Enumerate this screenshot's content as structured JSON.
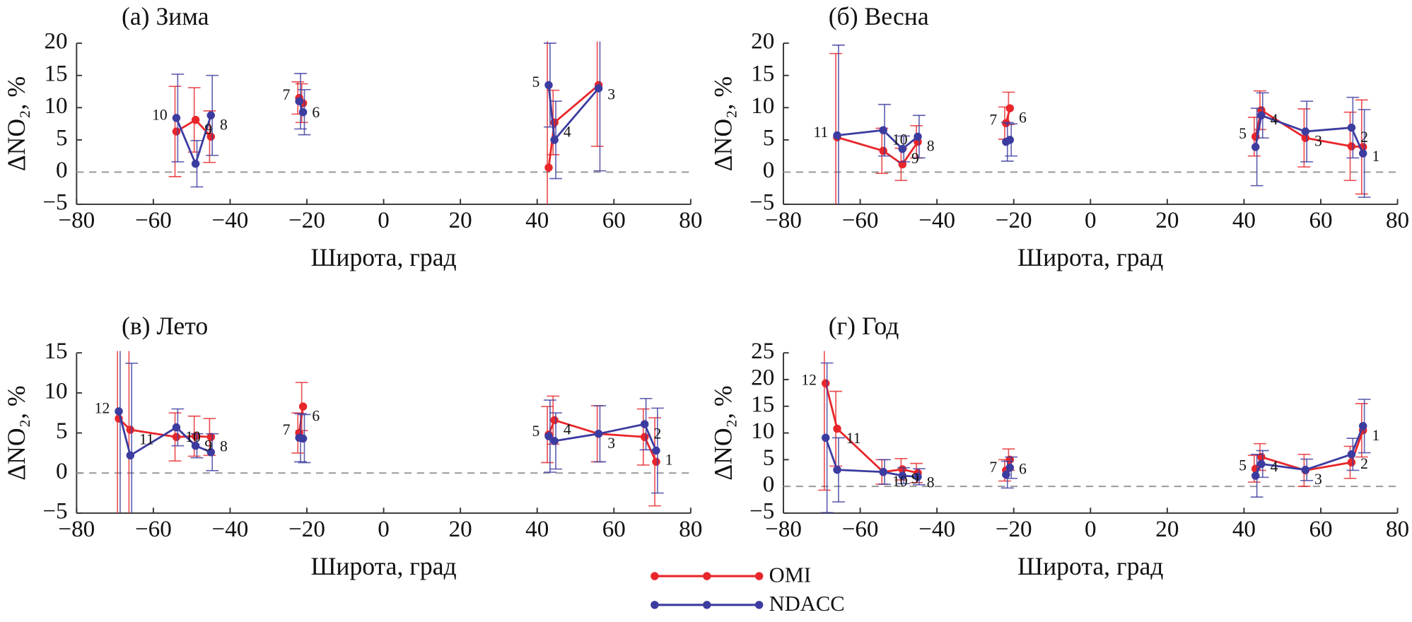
{
  "chart_data": [
    {
      "type": "line",
      "title": "(а) Зима",
      "x_label": "Широта, град",
      "y_label": "ΔNO₂, %",
      "x": [
        -54,
        -49,
        -45,
        null,
        -22,
        -21,
        null,
        43,
        44.5,
        56
      ],
      "point_labels": [
        "10",
        "9",
        "8",
        null,
        "7",
        "6",
        null,
        "5",
        "4",
        "3"
      ],
      "series": [
        {
          "name": "OMI",
          "color": "#e8262a",
          "values": [
            6.3,
            8.1,
            5.5,
            null,
            11.5,
            10.7,
            null,
            0.7,
            7.7,
            13.5
          ],
          "errors": [
            7,
            5,
            4,
            null,
            2.5,
            3,
            null,
            20,
            5,
            9.5
          ]
        },
        {
          "name": "NDACC",
          "color": "#3c3ca0",
          "values": [
            8.4,
            1.3,
            8.8,
            null,
            11,
            9.3,
            null,
            13.5,
            5,
            13
          ],
          "errors": [
            6.8,
            3.6,
            6.2,
            null,
            4.3,
            3.5,
            null,
            6.5,
            6,
            12.8
          ]
        }
      ],
      "xlim": [
        -80,
        80
      ],
      "ylim": [
        -5,
        20
      ],
      "xticks": [
        {
          "value": -80,
          "label": "−80"
        },
        {
          "value": -60,
          "label": "−60"
        },
        {
          "value": -40,
          "label": "−40"
        },
        {
          "value": -20,
          "label": "−20"
        },
        0,
        20,
        40,
        60,
        80
      ],
      "yticks": [
        {
          "value": -5,
          "label": "−5"
        },
        0,
        5,
        10,
        15,
        20
      ]
    },
    {
      "type": "line",
      "title": "(б) Весна",
      "x_label": "Широта, град",
      "y_label": "ΔNO₂, %",
      "x": [
        -66,
        -54,
        -49,
        -45,
        null,
        -22,
        -21,
        null,
        43,
        44.5,
        56,
        68,
        71
      ],
      "point_labels": [
        "11",
        "10",
        "9",
        "8",
        null,
        "7",
        "6",
        null,
        "5",
        "4",
        "3",
        "2",
        "1"
      ],
      "series": [
        {
          "name": "OMI",
          "color": "#e8262a",
          "values": [
            5.4,
            3.3,
            1.2,
            4.7,
            null,
            7.6,
            9.9,
            null,
            5.5,
            9.6,
            5.3,
            4,
            3.9
          ],
          "errors": [
            13,
            3.5,
            2.5,
            2.5,
            null,
            2.5,
            2.5,
            null,
            3,
            3,
            4.5,
            5.3,
            7.3
          ]
        },
        {
          "name": "NDACC",
          "color": "#3c3ca0",
          "values": [
            5.7,
            6.5,
            3.6,
            5.5,
            null,
            4.7,
            5,
            null,
            3.9,
            8.8,
            6.3,
            6.9,
            2.9
          ],
          "errors": [
            14,
            4,
            2,
            3.3,
            null,
            3,
            2.5,
            null,
            6,
            3.5,
            4.7,
            4.7,
            6.8
          ]
        }
      ],
      "xlim": [
        -80,
        80
      ],
      "ylim": [
        -5,
        20
      ],
      "xticks": [
        {
          "value": -80,
          "label": "−80"
        },
        {
          "value": -60,
          "label": "−60"
        },
        {
          "value": -40,
          "label": "−40"
        },
        {
          "value": -20,
          "label": "−20"
        },
        0,
        20,
        40,
        60,
        80
      ],
      "yticks": [
        {
          "value": -5,
          "label": "−5"
        },
        0,
        5,
        10,
        15,
        20
      ]
    },
    {
      "type": "line",
      "title": "(в) Лето",
      "x_label": "Широта, град",
      "y_label": "ΔNO₂, %",
      "x": [
        -69,
        -66,
        -54,
        -49,
        -45,
        null,
        -22,
        -21,
        null,
        43,
        44.5,
        56,
        68,
        71
      ],
      "point_labels": [
        "12",
        "11",
        "10",
        "9",
        "8",
        null,
        "7",
        "6",
        null,
        "5",
        "4",
        "3",
        "2",
        "1"
      ],
      "series": [
        {
          "name": "OMI",
          "color": "#e8262a",
          "values": [
            6.8,
            5.4,
            4.5,
            4.6,
            4.5,
            null,
            5,
            8.3,
            null,
            4.8,
            6.6,
            4.9,
            4.5,
            1.4
          ],
          "errors": [
            13,
            13,
            3,
            2.5,
            2.3,
            null,
            2.5,
            3,
            null,
            3.5,
            3,
            3.5,
            3.5,
            5.5
          ]
        },
        {
          "name": "NDACC",
          "color": "#3c3ca0",
          "values": [
            7.7,
            2.2,
            5.7,
            3.4,
            2.6,
            null,
            4.4,
            4.3,
            null,
            4.6,
            4,
            4.9,
            6.1,
            2.8
          ],
          "errors": [
            13,
            11.5,
            2.3,
            1.5,
            2.3,
            null,
            3,
            3,
            null,
            4.5,
            3.5,
            3.5,
            3.2,
            5.3
          ]
        }
      ],
      "xlim": [
        -80,
        80
      ],
      "ylim": [
        -5,
        15
      ],
      "xticks": [
        {
          "value": -80,
          "label": "−80"
        },
        {
          "value": -60,
          "label": "−60"
        },
        {
          "value": -40,
          "label": "−40"
        },
        {
          "value": -20,
          "label": "−20"
        },
        0,
        20,
        40,
        60,
        80
      ],
      "yticks": [
        {
          "value": -5,
          "label": "−5"
        },
        0,
        5,
        10,
        15
      ]
    },
    {
      "type": "line",
      "title": "(г) Год",
      "x_label": "Широта, град",
      "y_label": "ΔNO₂, %",
      "x": [
        -69,
        -66,
        -54,
        -49,
        -45,
        null,
        -22,
        -21,
        null,
        43,
        44.5,
        56,
        68,
        71
      ],
      "point_labels": [
        "12",
        "11",
        "10",
        "9",
        "8",
        null,
        "7",
        "6",
        null,
        "5",
        "4",
        "3",
        "2",
        "1"
      ],
      "series": [
        {
          "name": "OMI",
          "color": "#e8262a",
          "values": [
            19.3,
            10.8,
            2.7,
            3.2,
            2.5,
            null,
            3,
            5,
            null,
            3.3,
            5.5,
            3,
            4.5,
            10.5
          ],
          "errors": [
            20,
            7,
            2.3,
            2,
            1.8,
            null,
            2,
            2,
            null,
            2.5,
            2.5,
            3,
            3,
            5
          ]
        },
        {
          "name": "NDACC",
          "color": "#3c3ca0",
          "values": [
            9.1,
            3.1,
            2.7,
            2,
            1.8,
            null,
            2.2,
            3.5,
            null,
            2,
            4.2,
            3.1,
            6,
            11.3
          ],
          "errors": [
            14,
            6,
            2.3,
            1.5,
            1.5,
            null,
            2.5,
            2,
            null,
            4,
            2.5,
            2,
            3,
            5
          ]
        }
      ],
      "xlim": [
        -80,
        80
      ],
      "ylim": [
        -5,
        25
      ],
      "xticks": [
        {
          "value": -80,
          "label": "−80"
        },
        {
          "value": -60,
          "label": "−60"
        },
        {
          "value": -40,
          "label": "−40"
        },
        {
          "value": -20,
          "label": "−20"
        },
        0,
        20,
        40,
        60,
        80
      ],
      "yticks": [
        {
          "value": -5,
          "label": "−5"
        },
        0,
        5,
        10,
        15,
        20,
        25
      ]
    }
  ]
}
